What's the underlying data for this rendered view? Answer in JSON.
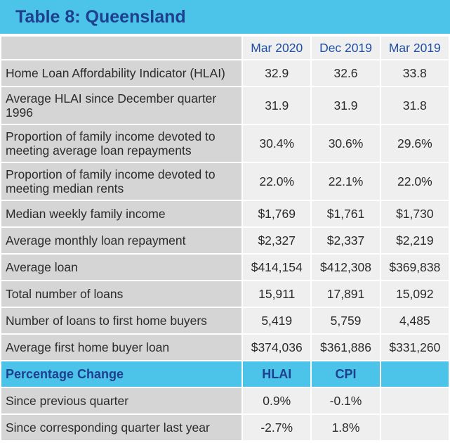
{
  "title": "Table 8: Queensland",
  "columns": [
    "Mar 2020",
    "Dec 2019",
    "Mar 2019"
  ],
  "rows": [
    {
      "label": "Home Loan Affordability Indicator (HLAI)",
      "values": [
        "32.9",
        "32.6",
        "33.8"
      ]
    },
    {
      "label": "Average HLAI since December quarter 1996",
      "values": [
        "31.9",
        "31.9",
        "31.8"
      ]
    },
    {
      "label": "Proportion of family income devoted to meeting average loan repayments",
      "values": [
        "30.4%",
        "30.6%",
        "29.6%"
      ]
    },
    {
      "label": "Proportion of family income devoted to meeting median rents",
      "values": [
        "22.0%",
        "22.1%",
        "22.0%"
      ]
    },
    {
      "label": "Median weekly family income",
      "values": [
        "$1,769",
        "$1,761",
        "$1,730"
      ]
    },
    {
      "label": "Average monthly loan repayment",
      "values": [
        "$2,327",
        "$2,337",
        "$2,219"
      ]
    },
    {
      "label": "Average loan",
      "values": [
        "$414,154",
        "$412,308",
        "$369,838"
      ]
    },
    {
      "label": "Total number of loans",
      "values": [
        "15,911",
        "17,891",
        "15,092"
      ]
    },
    {
      "label": "Number of loans to first home buyers",
      "values": [
        "5,419",
        "5,759",
        "4,485"
      ]
    },
    {
      "label": "Average first home buyer loan",
      "values": [
        "$374,036",
        "$361,886",
        "$331,260"
      ]
    }
  ],
  "change_section": {
    "title": "Percentage Change",
    "columns": [
      "HLAI",
      "CPI"
    ],
    "rows": [
      {
        "label": "Since previous quarter",
        "values": [
          "0.9%",
          "-0.1%"
        ]
      },
      {
        "label": "Since corresponding quarter last year",
        "values": [
          "-2.7%",
          "1.8%"
        ]
      }
    ]
  }
}
